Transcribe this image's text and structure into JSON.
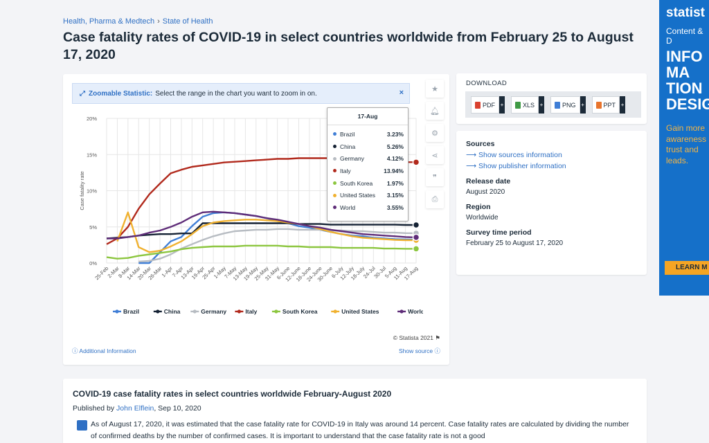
{
  "breadcrumb": {
    "item1": "Health, Pharma & Medtech",
    "sep": "›",
    "item2": "State of Health"
  },
  "title": "Case fatality rates of COVID-19 in select countries worldwide from February 25 to August 17, 2020",
  "zoom": {
    "label": "Zoomable Statistic:",
    "text": "Select the range in the chart you want to zoom in on.",
    "close": "×"
  },
  "chart_data": {
    "type": "line",
    "ylabel": "Case fatality rate",
    "xlabel": "",
    "ylim": [
      0,
      20
    ],
    "yticks": [
      "0%",
      "5%",
      "10%",
      "15%",
      "20%"
    ],
    "grid": true,
    "legend_position": "bottom",
    "x": [
      "25-Feb",
      "2-Mar",
      "8-Mar",
      "14-Mar",
      "20-Mar",
      "26-Mar",
      "1-Apr",
      "7-Apr",
      "13-Apr",
      "19-Apr",
      "25-Apr",
      "1-May",
      "7-May",
      "13-May",
      "19-May",
      "25-May",
      "31-May",
      "6-June",
      "12-June",
      "18-June",
      "24-June",
      "30-June",
      "6-July",
      "12-July",
      "18-July",
      "24-Jul",
      "30-Jul",
      "5-Aug",
      "11-Aug",
      "17-Aug"
    ],
    "series": [
      {
        "name": "Brazil",
        "color": "#3f7ed6",
        "values": [
          null,
          null,
          null,
          0,
          0,
          1.5,
          3.0,
          3.6,
          5.1,
          6.4,
          6.9,
          7.0,
          6.9,
          6.7,
          6.5,
          6.2,
          5.8,
          5.5,
          5.1,
          4.9,
          4.6,
          4.3,
          4.0,
          3.8,
          3.7,
          3.5,
          3.4,
          3.3,
          3.25,
          3.23
        ]
      },
      {
        "name": "China",
        "color": "#152234",
        "values": [
          3.4,
          3.5,
          3.6,
          3.8,
          3.9,
          4.0,
          4.0,
          4.1,
          4.1,
          5.5,
          5.5,
          5.5,
          5.5,
          5.5,
          5.5,
          5.5,
          5.5,
          5.5,
          5.4,
          5.4,
          5.4,
          5.3,
          5.3,
          5.3,
          5.3,
          5.3,
          5.3,
          5.3,
          5.26,
          5.26
        ]
      },
      {
        "name": "Germany",
        "color": "#b7bcc2",
        "values": [
          null,
          null,
          null,
          0.2,
          0.3,
          0.6,
          1.2,
          2.0,
          2.6,
          3.2,
          3.7,
          4.1,
          4.4,
          4.5,
          4.6,
          4.6,
          4.7,
          4.7,
          4.6,
          4.6,
          4.6,
          4.5,
          4.5,
          4.4,
          4.4,
          4.3,
          4.2,
          4.2,
          4.13,
          4.12
        ]
      },
      {
        "name": "Italy",
        "color": "#b1291c",
        "values": [
          2.6,
          3.4,
          5.0,
          7.5,
          9.5,
          11.0,
          12.4,
          12.9,
          13.3,
          13.5,
          13.7,
          13.9,
          14.0,
          14.1,
          14.2,
          14.3,
          14.4,
          14.4,
          14.5,
          14.5,
          14.5,
          14.5,
          14.4,
          14.4,
          14.3,
          14.2,
          14.1,
          14.0,
          13.95,
          13.94
        ]
      },
      {
        "name": "South Korea",
        "color": "#8cc63f",
        "values": [
          0.8,
          0.6,
          0.7,
          1.0,
          1.2,
          1.4,
          1.6,
          1.9,
          2.1,
          2.2,
          2.3,
          2.3,
          2.3,
          2.4,
          2.4,
          2.4,
          2.4,
          2.3,
          2.3,
          2.2,
          2.2,
          2.2,
          2.1,
          2.1,
          2.1,
          2.1,
          2.0,
          2.0,
          1.97,
          1.97
        ]
      },
      {
        "name": "United States",
        "color": "#f0b12f",
        "values": [
          null,
          3.0,
          7.0,
          2.2,
          1.5,
          1.7,
          2.3,
          3.0,
          4.0,
          5.1,
          5.6,
          5.8,
          5.9,
          6.0,
          6.0,
          5.9,
          5.8,
          5.6,
          5.4,
          5.1,
          4.7,
          4.3,
          4.0,
          3.7,
          3.5,
          3.4,
          3.3,
          3.2,
          3.16,
          3.15
        ]
      },
      {
        "name": "World",
        "color": "#5e2c78",
        "values": [
          3.4,
          3.4,
          3.6,
          3.8,
          4.2,
          4.5,
          5.0,
          5.6,
          6.4,
          7.0,
          7.1,
          7.0,
          6.9,
          6.7,
          6.5,
          6.2,
          6.0,
          5.7,
          5.4,
          5.1,
          4.9,
          4.6,
          4.4,
          4.2,
          4.0,
          3.9,
          3.8,
          3.7,
          3.6,
          3.55
        ]
      }
    ]
  },
  "tooltip": {
    "title": "17-Aug",
    "rows": [
      {
        "name": "Brazil",
        "value": "3.23%",
        "color": "#3f7ed6"
      },
      {
        "name": "China",
        "value": "5.26%",
        "color": "#152234"
      },
      {
        "name": "Germany",
        "value": "4.12%",
        "color": "#b7bcc2"
      },
      {
        "name": "Italy",
        "value": "13.94%",
        "color": "#b1291c"
      },
      {
        "name": "South Korea",
        "value": "1.97%",
        "color": "#8cc63f"
      },
      {
        "name": "United States",
        "value": "3.15%",
        "color": "#f0b12f"
      },
      {
        "name": "World",
        "value": "3.55%",
        "color": "#5e2c78"
      }
    ]
  },
  "chart_footer": {
    "copyright": "© Statista 2021",
    "additional": "Additional Information",
    "show_source": "Show source"
  },
  "download": {
    "title": "DOWNLOAD",
    "pdf": "PDF",
    "xls": "XLS",
    "png": "PNG",
    "ppt": "PPT",
    "plus": "+"
  },
  "info": {
    "sources_label": "Sources",
    "show_sources": "Show sources information",
    "show_publisher": "Show publisher information",
    "release_label": "Release date",
    "release_value": "August 2020",
    "region_label": "Region",
    "region_value": "Worldwide",
    "survey_label": "Survey time period",
    "survey_value": "February 25 to August 17, 2020"
  },
  "ad": {
    "brand": "statist",
    "sub": "Content & D",
    "big": "INFO MA TION DESIG",
    "tag": "Gain more awareness trust and leads.",
    "cta": "LEARN M"
  },
  "description": {
    "title": "COVID-19 case fatality rates in select countries worldwide February-August 2020",
    "published_prefix": "Published by",
    "author": "John Elflein",
    "date": ", Sep 10, 2020",
    "text": "As of August 17, 2020, it was estimated that the case fatality rate for COVID-19 in Italy was around 14 percent. Case fatality rates are calculated by dividing the number of confirmed deaths by the number of confirmed cases. It is important to understand that the case fatality rate is not a good"
  }
}
